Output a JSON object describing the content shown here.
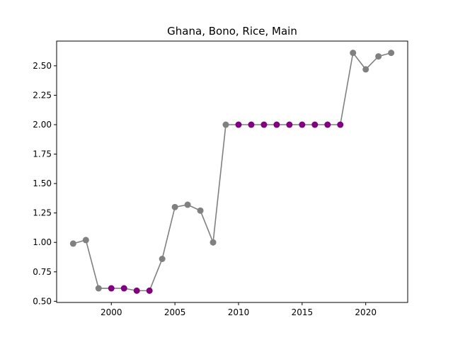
{
  "chart_data": {
    "type": "line",
    "title": "Ghana, Bono, Rice, Main",
    "xlabel": "",
    "ylabel": "",
    "xlim": [
      1995.7,
      2023.3
    ],
    "ylim": [
      0.49,
      2.71
    ],
    "x_ticks": [
      2000,
      2005,
      2010,
      2015,
      2020
    ],
    "y_ticks": [
      0.5,
      0.75,
      1.0,
      1.25,
      1.5,
      1.75,
      2.0,
      2.25,
      2.5
    ],
    "y_tick_labels": [
      "0.50",
      "0.75",
      "1.00",
      "1.25",
      "1.50",
      "1.75",
      "2.00",
      "2.25",
      "2.50"
    ],
    "grid": false,
    "line_color": "#808080",
    "point_colors": {
      "normal": "#808080",
      "highlight": "#800080"
    },
    "series": [
      {
        "x": [
          1997,
          1998,
          1999,
          2000,
          2001,
          2002,
          2003,
          2004,
          2005,
          2006,
          2007,
          2008,
          2009,
          2010,
          2011,
          2012,
          2013,
          2014,
          2015,
          2016,
          2017,
          2018,
          2019,
          2020,
          2021,
          2022
        ],
        "y": [
          0.99,
          1.02,
          0.61,
          0.61,
          0.61,
          0.59,
          0.59,
          0.86,
          1.3,
          1.32,
          1.27,
          1.0,
          2.0,
          2.0,
          2.0,
          2.0,
          2.0,
          2.0,
          2.0,
          2.0,
          2.0,
          2.0,
          2.61,
          2.47,
          2.58,
          2.61
        ],
        "highlight": [
          false,
          false,
          false,
          true,
          true,
          true,
          true,
          false,
          false,
          false,
          false,
          false,
          false,
          true,
          true,
          true,
          true,
          true,
          true,
          true,
          true,
          true,
          false,
          false,
          false,
          false
        ]
      }
    ]
  }
}
